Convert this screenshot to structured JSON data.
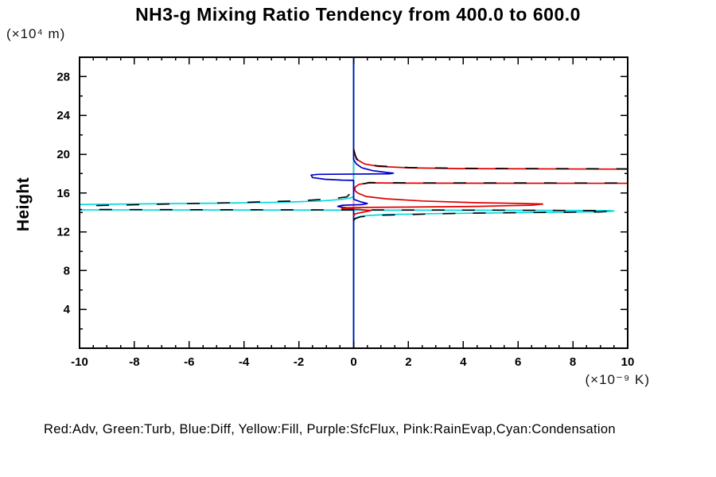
{
  "chart": {
    "title": "NH3-g Mixing Ratio Tendency from 400.0 to 600.0",
    "y_units": "(×10⁴ m)",
    "ylabel": "Height",
    "x_units": "(×10⁻⁹ K)",
    "legend_text": "Red:Adv, Green:Turb, Blue:Diff, Yellow:Fill, Purple:SfcFlux, Pink:RainEvap,Cyan:Condensation"
  },
  "chart_data": {
    "type": "line",
    "title": "NH3-g Mixing Ratio Tendency from 400.0 to 600.0",
    "xlabel": "(×10⁻⁹ K)",
    "ylabel": "Height (×10⁴ m)",
    "xlim": [
      -10,
      10
    ],
    "ylim": [
      0,
      30
    ],
    "x_major_ticks": [
      -10,
      -8,
      -6,
      -4,
      -2,
      0,
      2,
      4,
      6,
      8,
      10
    ],
    "x_minor_step": 0.5,
    "y_major_ticks": [
      4,
      8,
      12,
      16,
      20,
      24,
      28
    ],
    "y_minor_step": 2,
    "grid": false,
    "legend_position": "bottom-text-line",
    "legend_text": "Red:Adv, Green:Turb, Blue:Diff, Yellow:Fill, Purple:SfcFlux, Pink:RainEvap,Cyan:Condensation",
    "axes_note": "x = mixing ratio tendency (×10⁻⁹ K), y = height (×10⁴ m); vertical line at x=0",
    "series": [
      {
        "id": "fill",
        "name": "Fill",
        "color": "#ffd400",
        "width": 1.4,
        "points": [
          [
            0,
            0
          ],
          [
            0,
            30
          ]
        ]
      },
      {
        "id": "turb",
        "name": "Turb",
        "color": "#00a000",
        "width": 1.4,
        "points": [
          [
            0,
            0
          ],
          [
            0,
            30
          ]
        ]
      },
      {
        "id": "sfcflux",
        "name": "SfcFlux",
        "color": "#b000d0",
        "width": 1.4,
        "points": [
          [
            0,
            0
          ],
          [
            0,
            30
          ]
        ]
      },
      {
        "id": "rainevap",
        "name": "RainEvap",
        "color": "#ff9898",
        "width": 1.4,
        "points": [
          [
            0,
            0
          ],
          [
            0,
            30
          ]
        ]
      },
      {
        "id": "condensation",
        "name": "Condensation",
        "color": "#00d8e2",
        "width": 1.7,
        "points": [
          [
            0,
            30
          ],
          [
            0,
            15.62
          ],
          [
            -0.12,
            15.5
          ],
          [
            -0.4,
            15.35
          ],
          [
            -1.2,
            15.18
          ],
          [
            -2.5,
            15.06
          ],
          [
            -5,
            14.95
          ],
          [
            -10.7,
            14.8
          ],
          [
            -10.7,
            14.26
          ],
          [
            6,
            14.22
          ],
          [
            9.3,
            14.2
          ],
          [
            9.5,
            14.15
          ],
          [
            9.2,
            14.07
          ],
          [
            6,
            13.98
          ],
          [
            3,
            13.88
          ],
          [
            1.2,
            13.78
          ],
          [
            0.5,
            13.68
          ],
          [
            0.18,
            13.55
          ],
          [
            0.05,
            13.4
          ],
          [
            0,
            13.25
          ],
          [
            0,
            0
          ]
        ]
      },
      {
        "id": "diff",
        "name": "Diff",
        "color": "#0000c8",
        "width": 1.7,
        "points": [
          [
            0,
            30
          ],
          [
            0,
            19.45
          ],
          [
            0.1,
            19.0
          ],
          [
            0.3,
            18.6
          ],
          [
            0.7,
            18.3
          ],
          [
            1.2,
            18.12
          ],
          [
            1.45,
            18.05
          ],
          [
            1.3,
            17.98
          ],
          [
            -1.3,
            17.93
          ],
          [
            -1.55,
            17.85
          ],
          [
            -1.5,
            17.6
          ],
          [
            -1.05,
            17.42
          ],
          [
            -0.4,
            17.33
          ],
          [
            0,
            17.3
          ],
          [
            0,
            15.35
          ],
          [
            0.25,
            15.1
          ],
          [
            0.5,
            14.92
          ],
          [
            0.3,
            14.8
          ],
          [
            -0.4,
            14.75
          ],
          [
            -0.58,
            14.62
          ],
          [
            -0.3,
            14.5
          ],
          [
            0,
            14.42
          ],
          [
            0,
            0
          ]
        ]
      },
      {
        "id": "adv",
        "name": "Adv",
        "color": "#e00000",
        "width": 1.7,
        "points": [
          [
            0,
            20.6
          ],
          [
            0.05,
            19.9
          ],
          [
            0.15,
            19.4
          ],
          [
            0.4,
            19.0
          ],
          [
            0.9,
            18.75
          ],
          [
            2,
            18.6
          ],
          [
            4,
            18.52
          ],
          [
            11,
            18.45
          ],
          [
            11,
            17.0
          ],
          [
            2,
            17.02
          ],
          [
            0.6,
            17.05
          ],
          [
            0.2,
            16.9
          ],
          [
            0.05,
            16.6
          ],
          [
            0.05,
            16.25
          ],
          [
            0.15,
            16.0
          ],
          [
            0.45,
            15.65
          ],
          [
            1.2,
            15.4
          ],
          [
            2.5,
            15.18
          ],
          [
            4.5,
            15.0
          ],
          [
            6.2,
            14.92
          ],
          [
            6.9,
            14.87
          ],
          [
            6.5,
            14.75
          ],
          [
            4.5,
            14.62
          ],
          [
            2,
            14.55
          ],
          [
            0.5,
            14.52
          ],
          [
            -0.45,
            14.48
          ],
          [
            -0.4,
            14.35
          ],
          [
            0.2,
            14.32
          ],
          [
            0.62,
            14.18
          ],
          [
            0.3,
            14.0
          ],
          [
            0.05,
            13.85
          ],
          [
            0,
            13.6
          ]
        ]
      },
      {
        "id": "total",
        "name": "Total (black, unlabeled)",
        "color": "#000000",
        "width": 1.6,
        "dash": "16 22",
        "points": [
          [
            0,
            20.55
          ],
          [
            0.1,
            19.5
          ],
          [
            0.35,
            19.05
          ],
          [
            0.85,
            18.8
          ],
          [
            2,
            18.63
          ],
          [
            4,
            18.55
          ],
          [
            11,
            18.48
          ],
          [
            11,
            17.03
          ],
          [
            2,
            17.05
          ],
          [
            0.55,
            17.08
          ],
          [
            0.15,
            16.8
          ],
          [
            0,
            16.3
          ],
          [
            -0.25,
            15.6
          ],
          [
            -0.8,
            15.4
          ],
          [
            -2,
            15.2
          ],
          [
            -4.5,
            15.0
          ],
          [
            -7,
            14.85
          ],
          [
            -10.7,
            14.62
          ],
          [
            -10.7,
            14.3
          ],
          [
            5,
            14.24
          ],
          [
            9.2,
            14.18
          ],
          [
            9.35,
            14.12
          ],
          [
            9,
            14.05
          ],
          [
            4,
            13.92
          ],
          [
            0.8,
            13.7
          ],
          [
            0.25,
            13.55
          ],
          [
            0.05,
            13.35
          ],
          [
            0,
            13.15
          ]
        ]
      }
    ]
  }
}
